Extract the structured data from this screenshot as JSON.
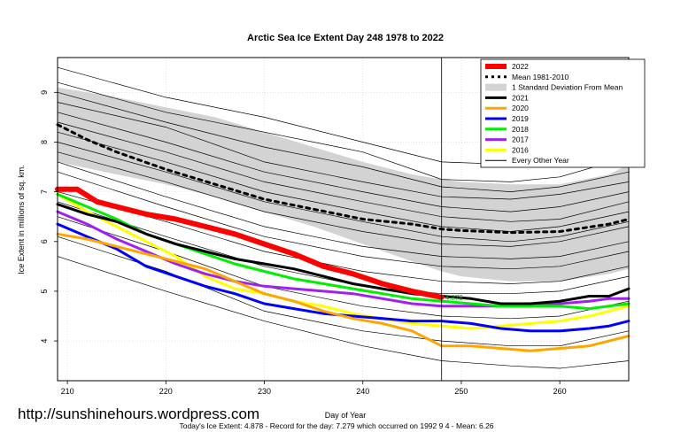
{
  "chart_data": {
    "type": "line",
    "title": "Arctic Sea Ice Extent Day 248 1978 to 2022",
    "xlabel": "Day of Year",
    "ylabel": "Ice Extent in millions of sq. km.",
    "xlim": [
      209,
      267
    ],
    "ylim": [
      3.2,
      9.7
    ],
    "x_ticks": [
      210,
      220,
      230,
      240,
      250,
      260
    ],
    "y_ticks": [
      4,
      5,
      6,
      7,
      8,
      9
    ],
    "grid": true,
    "legend_position": "top-right",
    "vertical_marker_day": 248,
    "point_label": "4.878",
    "std_band": {
      "x": [
        209,
        215,
        220,
        225,
        230,
        235,
        240,
        245,
        248,
        250,
        255,
        260,
        265,
        267
      ],
      "upper": [
        9.1,
        8.9,
        8.7,
        8.5,
        8.2,
        7.9,
        7.6,
        7.35,
        7.25,
        7.2,
        7.15,
        7.15,
        7.35,
        7.55
      ],
      "lower": [
        7.6,
        7.35,
        7.15,
        6.9,
        6.6,
        6.3,
        5.95,
        5.6,
        5.4,
        5.3,
        5.2,
        5.2,
        5.35,
        5.45
      ]
    },
    "every_other_year": [
      {
        "x": [
          209,
          220,
          230,
          240,
          248,
          255,
          260,
          267
        ],
        "values": [
          9.5,
          8.9,
          8.5,
          8.0,
          7.6,
          7.55,
          7.6,
          7.85
        ]
      },
      {
        "x": [
          209,
          220,
          230,
          240,
          248,
          255,
          260,
          267
        ],
        "values": [
          9.2,
          8.6,
          8.2,
          7.8,
          7.25,
          7.2,
          7.3,
          7.7
        ]
      },
      {
        "x": [
          209,
          220,
          230,
          240,
          248,
          255,
          260,
          267
        ],
        "values": [
          9.0,
          8.4,
          7.9,
          7.5,
          7.1,
          7.0,
          7.1,
          7.4
        ]
      },
      {
        "x": [
          209,
          220,
          230,
          240,
          248,
          255,
          260,
          267
        ],
        "values": [
          8.8,
          8.3,
          7.6,
          7.2,
          6.9,
          6.85,
          6.95,
          7.2
        ]
      },
      {
        "x": [
          209,
          220,
          230,
          240,
          248,
          255,
          260,
          267
        ],
        "values": [
          8.6,
          8.0,
          7.4,
          7.0,
          6.7,
          6.6,
          6.7,
          7.0
        ]
      },
      {
        "x": [
          209,
          220,
          230,
          240,
          248,
          255,
          260,
          267
        ],
        "values": [
          8.4,
          7.8,
          7.2,
          6.8,
          6.5,
          6.4,
          6.45,
          6.8
        ]
      },
      {
        "x": [
          209,
          220,
          230,
          240,
          248,
          255,
          260,
          267
        ],
        "values": [
          8.2,
          7.6,
          7.0,
          6.6,
          6.3,
          6.2,
          6.3,
          6.6
        ]
      },
      {
        "x": [
          209,
          220,
          230,
          240,
          248,
          255,
          260,
          267
        ],
        "values": [
          8.0,
          7.4,
          6.8,
          6.4,
          6.1,
          6.0,
          6.1,
          6.4
        ]
      },
      {
        "x": [
          209,
          220,
          230,
          240,
          248,
          255,
          260,
          267
        ],
        "values": [
          7.8,
          7.2,
          6.6,
          6.2,
          5.95,
          5.9,
          6.0,
          6.3
        ]
      },
      {
        "x": [
          209,
          220,
          230,
          240,
          248,
          255,
          260,
          267
        ],
        "values": [
          7.6,
          6.9,
          6.3,
          5.9,
          5.7,
          5.65,
          5.7,
          6.0
        ]
      },
      {
        "x": [
          209,
          220,
          230,
          240,
          248,
          255,
          260,
          267
        ],
        "values": [
          7.4,
          6.7,
          6.1,
          5.7,
          5.5,
          5.45,
          5.5,
          5.8
        ]
      },
      {
        "x": [
          209,
          220,
          230,
          240,
          248,
          255,
          260,
          267
        ],
        "values": [
          7.0,
          6.4,
          5.8,
          5.4,
          5.2,
          5.15,
          5.2,
          5.5
        ]
      },
      {
        "x": [
          209,
          220,
          230,
          240,
          248,
          255,
          260,
          267
        ],
        "values": [
          6.8,
          6.1,
          5.5,
          5.1,
          4.95,
          4.95,
          5.0,
          5.3
        ]
      },
      {
        "x": [
          209,
          220,
          230,
          240,
          248,
          255,
          260,
          267
        ],
        "values": [
          6.5,
          5.8,
          5.1,
          4.7,
          4.5,
          4.45,
          4.5,
          4.8
        ]
      },
      {
        "x": [
          209,
          220,
          230,
          240,
          248,
          255,
          260,
          267
        ],
        "values": [
          6.1,
          5.4,
          4.6,
          4.2,
          4.0,
          3.9,
          3.9,
          4.2
        ]
      },
      {
        "x": [
          209,
          220,
          230,
          240,
          248,
          255,
          260,
          267
        ],
        "values": [
          5.7,
          5.0,
          4.4,
          3.9,
          3.6,
          3.5,
          3.45,
          3.6
        ]
      }
    ],
    "series": [
      {
        "name": "2022",
        "color": "#ff0000",
        "width": 6,
        "x": [
          209,
          211,
          213,
          215,
          218,
          221,
          224,
          227,
          230,
          233,
          236,
          239,
          242,
          245,
          248
        ],
        "values": [
          7.05,
          7.05,
          6.8,
          6.7,
          6.55,
          6.45,
          6.3,
          6.15,
          5.95,
          5.75,
          5.5,
          5.35,
          5.15,
          5.0,
          4.878
        ]
      },
      {
        "name": "Mean 1981-2010",
        "color": "#000000",
        "width": 3,
        "dash": true,
        "x": [
          209,
          212,
          215,
          220,
          225,
          230,
          235,
          240,
          245,
          248,
          250,
          255,
          260,
          265,
          267
        ],
        "values": [
          8.35,
          8.05,
          7.8,
          7.45,
          7.15,
          6.85,
          6.65,
          6.45,
          6.35,
          6.25,
          6.22,
          6.18,
          6.2,
          6.35,
          6.45
        ]
      },
      {
        "name": "1 Standard Deviation From Mean",
        "color": "#d3d3d3",
        "band": true
      },
      {
        "name": "2021",
        "color": "#000000",
        "width": 3,
        "x": [
          209,
          212,
          215,
          218,
          221,
          224,
          227,
          230,
          233,
          236,
          239,
          242,
          245,
          248,
          251,
          254,
          257,
          260,
          263,
          265,
          267
        ],
        "values": [
          6.75,
          6.55,
          6.4,
          6.15,
          5.95,
          5.8,
          5.65,
          5.55,
          5.45,
          5.3,
          5.15,
          5.05,
          4.95,
          4.9,
          4.85,
          4.75,
          4.75,
          4.8,
          4.9,
          4.9,
          5.05
        ]
      },
      {
        "name": "2020",
        "color": "#ffa500",
        "width": 3,
        "x": [
          209,
          212,
          215,
          218,
          221,
          224,
          227,
          230,
          233,
          236,
          239,
          242,
          245,
          248,
          251,
          254,
          257,
          260,
          263,
          265,
          267
        ],
        "values": [
          6.15,
          6.05,
          5.9,
          5.75,
          5.6,
          5.45,
          5.2,
          4.95,
          4.8,
          4.6,
          4.45,
          4.35,
          4.2,
          3.9,
          3.9,
          3.85,
          3.8,
          3.85,
          3.9,
          4.0,
          4.1
        ]
      },
      {
        "name": "2019",
        "color": "#0000ff",
        "width": 3,
        "x": [
          209,
          212,
          215,
          218,
          221,
          224,
          227,
          230,
          233,
          236,
          239,
          242,
          245,
          248,
          251,
          254,
          257,
          260,
          263,
          265,
          267
        ],
        "values": [
          6.35,
          6.1,
          5.85,
          5.5,
          5.3,
          5.1,
          4.95,
          4.75,
          4.65,
          4.55,
          4.5,
          4.45,
          4.4,
          4.4,
          4.35,
          4.25,
          4.2,
          4.2,
          4.25,
          4.3,
          4.4
        ]
      },
      {
        "name": "2018",
        "color": "#00ee00",
        "width": 3,
        "x": [
          209,
          212,
          215,
          218,
          221,
          224,
          227,
          230,
          233,
          236,
          239,
          242,
          245,
          248,
          251,
          254,
          257,
          260,
          263,
          265,
          267
        ],
        "values": [
          6.95,
          6.7,
          6.45,
          6.15,
          5.95,
          5.75,
          5.55,
          5.4,
          5.25,
          5.15,
          5.05,
          4.95,
          4.85,
          4.8,
          4.75,
          4.7,
          4.7,
          4.7,
          4.65,
          4.7,
          4.75
        ]
      },
      {
        "name": "2017",
        "color": "#a020f0",
        "width": 3,
        "x": [
          209,
          212,
          215,
          218,
          221,
          224,
          227,
          230,
          233,
          236,
          239,
          242,
          245,
          248,
          251,
          254,
          257,
          260,
          263,
          265,
          267
        ],
        "values": [
          6.6,
          6.35,
          6.05,
          5.8,
          5.55,
          5.35,
          5.2,
          5.1,
          5.05,
          5.0,
          4.95,
          4.85,
          4.75,
          4.7,
          4.7,
          4.7,
          4.7,
          4.75,
          4.8,
          4.85,
          4.85
        ]
      },
      {
        "name": "2016",
        "color": "#ffff00",
        "width": 3,
        "x": [
          209,
          212,
          215,
          218,
          221,
          224,
          227,
          230,
          233,
          236,
          239,
          242,
          245,
          248,
          251,
          254,
          257,
          260,
          263,
          265,
          267
        ],
        "values": [
          6.95,
          6.6,
          6.3,
          6.0,
          5.7,
          5.3,
          5.05,
          4.95,
          4.8,
          4.7,
          4.55,
          4.45,
          4.35,
          4.3,
          4.25,
          4.3,
          4.35,
          4.4,
          4.5,
          4.6,
          4.7
        ]
      },
      {
        "name": "Every Other Year",
        "color": "#000000",
        "width": 1
      }
    ]
  },
  "watermark": "http://sunshinehours.wordpress.com",
  "footer": "Today's Ice Extent: 4.878  - Record for the day: 7.279 which occurred on 1992 9 4  - Mean: 6.26"
}
